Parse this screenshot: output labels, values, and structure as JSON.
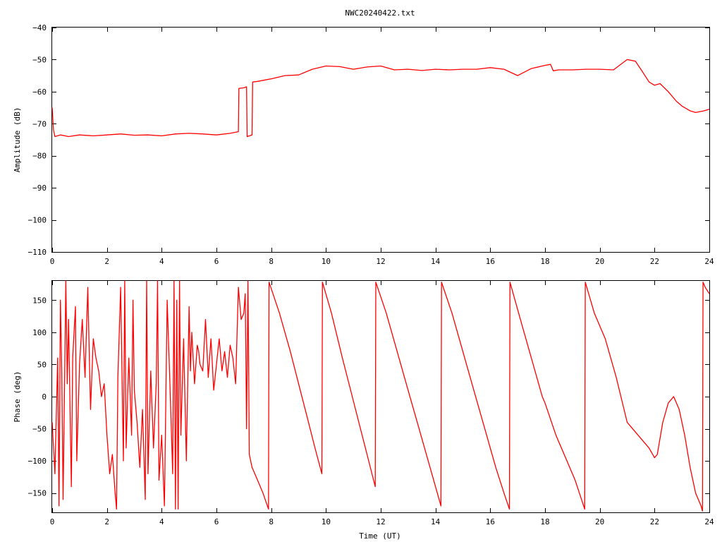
{
  "title": "NWC20240422.txt",
  "colors": {
    "trace": "#ff0000",
    "axis": "#000000",
    "background": "#ffffff"
  },
  "chart_data": [
    {
      "type": "line",
      "title": "NWC20240422.txt",
      "xlabel": "",
      "ylabel": "Amplitude (dB)",
      "xlim": [
        0,
        24
      ],
      "ylim": [
        -110,
        -40
      ],
      "xticks": [
        0,
        2,
        4,
        6,
        8,
        10,
        12,
        14,
        16,
        18,
        20,
        22,
        24
      ],
      "yticks": [
        -110,
        -100,
        -90,
        -80,
        -70,
        -60,
        -50,
        -40
      ],
      "grid": false,
      "series": [
        {
          "color": "#ff0000",
          "x": [
            0.0,
            0.05,
            0.1,
            0.3,
            0.6,
            1.0,
            1.5,
            2.0,
            2.5,
            3.0,
            3.5,
            4.0,
            4.5,
            5.0,
            5.5,
            6.0,
            6.5,
            6.8,
            6.82,
            7.0,
            7.1,
            7.12,
            7.3,
            7.32,
            7.5,
            8.0,
            8.5,
            9.0,
            9.5,
            10.0,
            10.5,
            11.0,
            11.5,
            12.0,
            12.5,
            13.0,
            13.5,
            14.0,
            14.5,
            15.0,
            15.5,
            16.0,
            16.5,
            17.0,
            17.5,
            18.0,
            18.2,
            18.3,
            18.5,
            19.0,
            19.5,
            20.0,
            20.5,
            21.0,
            21.3,
            21.5,
            21.8,
            22.0,
            22.2,
            22.5,
            22.8,
            23.0,
            23.3,
            23.5,
            23.8,
            24.0
          ],
          "y": [
            -65,
            -72,
            -74,
            -73.5,
            -74,
            -73.5,
            -73.8,
            -73.5,
            -73.2,
            -73.6,
            -73.5,
            -73.8,
            -73.2,
            -73,
            -73.2,
            -73.5,
            -73,
            -72.5,
            -59,
            -58.8,
            -58.5,
            -74,
            -73.5,
            -57,
            -56.8,
            -56,
            -55,
            -54.8,
            -53,
            -52,
            -52.2,
            -53,
            -52.3,
            -52,
            -53.2,
            -53,
            -53.4,
            -53,
            -53.2,
            -53,
            -53,
            -52.5,
            -53,
            -55,
            -52.8,
            -51.8,
            -51.5,
            -53.5,
            -53.2,
            -53.2,
            -53,
            -53,
            -53.2,
            -50,
            -50.5,
            -53,
            -57,
            -58,
            -57.5,
            -60,
            -63,
            -64.5,
            -66,
            -66.5,
            -66,
            -65.5
          ]
        }
      ]
    },
    {
      "type": "line",
      "title": "",
      "xlabel": "Time (UT)",
      "ylabel": "Phase (deg)",
      "xlim": [
        0,
        24
      ],
      "ylim": [
        -180,
        180
      ],
      "xticks": [
        0,
        2,
        4,
        6,
        8,
        10,
        12,
        14,
        16,
        18,
        20,
        22,
        24
      ],
      "yticks": [
        -150,
        -100,
        -50,
        0,
        50,
        100,
        150
      ],
      "grid": false,
      "series": [
        {
          "color": "#ff0000",
          "x": [
            0.0,
            0.1,
            0.2,
            0.25,
            0.3,
            0.35,
            0.4,
            0.5,
            0.55,
            0.6,
            0.7,
            0.75,
            0.85,
            0.9,
            1.0,
            1.1,
            1.2,
            1.3,
            1.4,
            1.5,
            1.6,
            1.7,
            1.8,
            1.9,
            2.0,
            2.1,
            2.2,
            2.3,
            2.35,
            2.4,
            2.5,
            2.6,
            2.65,
            2.7,
            2.8,
            2.9,
            2.95,
            3.0,
            3.1,
            3.2,
            3.3,
            3.4,
            3.45,
            3.5,
            3.6,
            3.7,
            3.8,
            3.85,
            3.9,
            4.0,
            4.1,
            4.2,
            4.3,
            4.4,
            4.45,
            4.5,
            4.55,
            4.6,
            4.65,
            4.7,
            4.8,
            4.9,
            5.0,
            5.05,
            5.1,
            5.2,
            5.3,
            5.35,
            5.4,
            5.5,
            5.6,
            5.7,
            5.8,
            5.9,
            6.0,
            6.1,
            6.2,
            6.3,
            6.4,
            6.5,
            6.6,
            6.7,
            6.8,
            6.9,
            7.0,
            7.05,
            7.1,
            7.15,
            7.2,
            7.3,
            7.5,
            7.7,
            7.9,
            7.92,
            8.3,
            8.7,
            9.0,
            9.3,
            9.6,
            9.85,
            9.87,
            10.2,
            10.6,
            10.9,
            11.2,
            11.5,
            11.8,
            11.82,
            12.2,
            12.6,
            13.0,
            13.4,
            13.8,
            14.2,
            14.22,
            14.6,
            15.0,
            15.4,
            15.8,
            16.2,
            16.5,
            16.7,
            16.72,
            17.1,
            17.5,
            17.9,
            18.0,
            18.4,
            18.8,
            19.1,
            19.45,
            19.47,
            19.8,
            20.2,
            20.6,
            21.0,
            21.4,
            21.8,
            22.0,
            22.1,
            22.3,
            22.5,
            22.7,
            22.9,
            23.1,
            23.3,
            23.5,
            23.7,
            23.75,
            23.77,
            23.85,
            24.0
          ],
          "y": [
            -40,
            -120,
            60,
            -170,
            150,
            40,
            -160,
            180,
            20,
            120,
            -140,
            60,
            140,
            -100,
            50,
            120,
            30,
            170,
            -20,
            90,
            60,
            40,
            0,
            20,
            -60,
            -120,
            -90,
            -150,
            -175,
            30,
            170,
            -100,
            180,
            -80,
            60,
            -60,
            150,
            10,
            -40,
            -110,
            -20,
            -160,
            180,
            -120,
            40,
            -80,
            20,
            180,
            -130,
            -60,
            -170,
            150,
            20,
            -120,
            180,
            -175,
            150,
            -175,
            180,
            -60,
            90,
            -100,
            140,
            40,
            100,
            20,
            80,
            70,
            50,
            40,
            120,
            30,
            90,
            10,
            50,
            90,
            40,
            70,
            30,
            80,
            60,
            20,
            170,
            120,
            130,
            160,
            -50,
            180,
            -90,
            -110,
            -130,
            -150,
            -175,
            178,
            130,
            70,
            20,
            -30,
            -80,
            -120,
            178,
            130,
            60,
            10,
            -40,
            -90,
            -140,
            178,
            130,
            70,
            10,
            -50,
            -110,
            -170,
            178,
            130,
            70,
            10,
            -50,
            -110,
            -150,
            -175,
            178,
            120,
            60,
            0,
            -10,
            -60,
            -100,
            -130,
            -175,
            178,
            130,
            90,
            30,
            -40,
            -60,
            -80,
            -95,
            -90,
            -40,
            -10,
            0,
            -20,
            -60,
            -110,
            -150,
            -170,
            -178,
            178,
            170,
            160
          ]
        }
      ]
    }
  ]
}
